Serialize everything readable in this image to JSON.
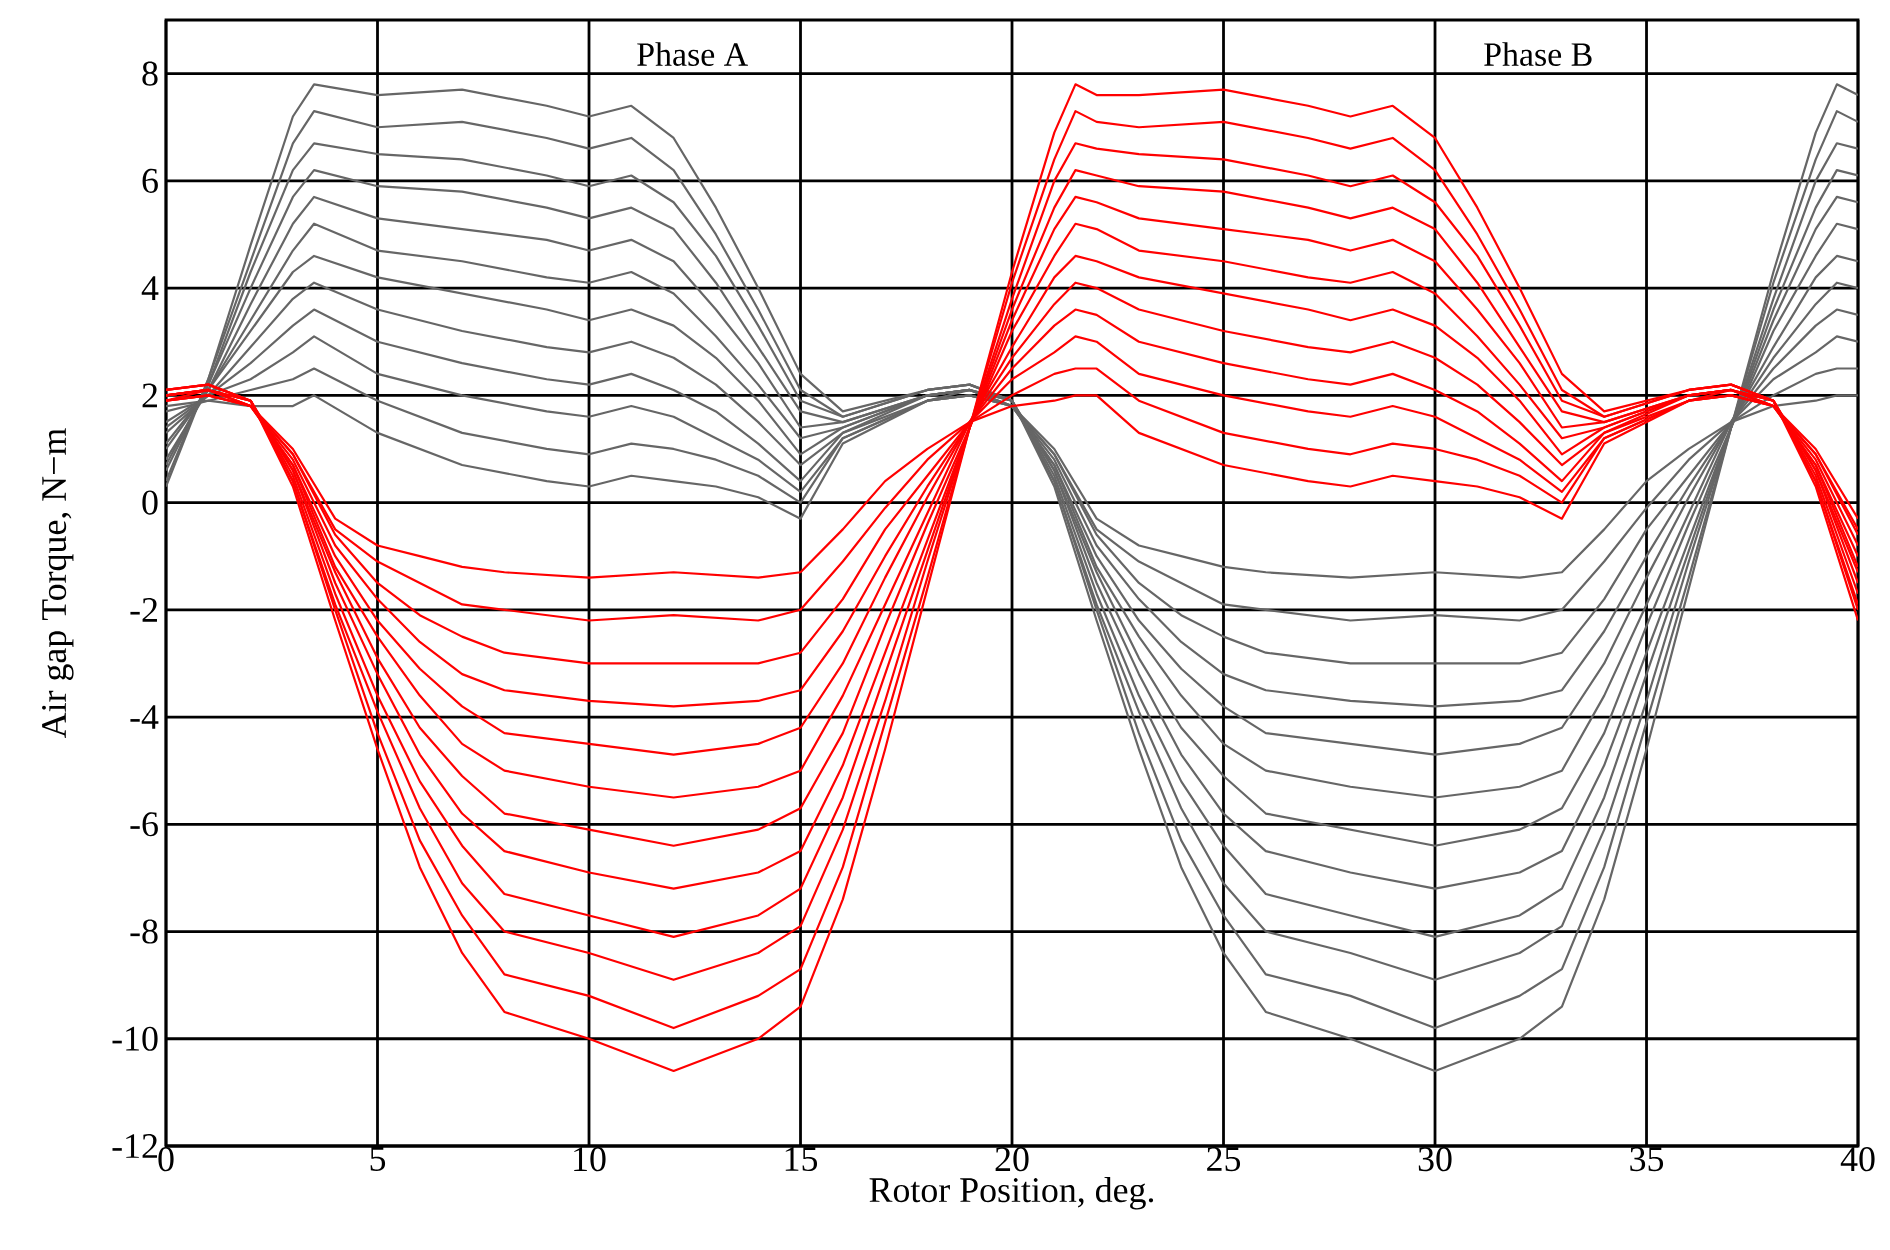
{
  "chart_data": {
    "type": "line",
    "xlabel": "Rotor Position, deg.",
    "ylabel": "Air gap Torque, N−m",
    "xlim": [
      0,
      40
    ],
    "ylim": [
      -12,
      9
    ],
    "xticks": [
      0,
      5,
      10,
      15,
      20,
      25,
      30,
      35,
      40
    ],
    "yticks": [
      -12,
      -10,
      -8,
      -6,
      -4,
      -2,
      0,
      2,
      4,
      6,
      8
    ],
    "grid": true,
    "line_style": "solid",
    "marker": "none",
    "annotations": [
      "Phase A",
      "Phase B"
    ],
    "series": [
      {
        "color": "#666666",
        "x": [
          0,
          1,
          2,
          3,
          3.5,
          5,
          7,
          9,
          10,
          11,
          12,
          13,
          14,
          15,
          16,
          18,
          19,
          20,
          21,
          22,
          23,
          24,
          25,
          26,
          28,
          30,
          32,
          33,
          34,
          35,
          36,
          37,
          38,
          39,
          39.5,
          40
        ],
        "values": [
          1.8,
          1.9,
          1.8,
          1.8,
          2.0,
          1.3,
          0.7,
          0.4,
          0.3,
          0.5,
          0.4,
          0.3,
          0.1,
          -0.3,
          1.1,
          1.9,
          2.0,
          1.8,
          1.0,
          -0.3,
          -0.8,
          -1.0,
          -1.2,
          -1.3,
          -1.4,
          -1.3,
          -1.4,
          -1.3,
          -0.5,
          0.4,
          1.0,
          1.5,
          1.8,
          1.9,
          2.0,
          2.0
        ]
      },
      {
        "color": "#666666",
        "x": [
          0,
          1,
          2,
          3,
          3.5,
          5,
          7,
          9,
          10,
          11,
          12,
          13,
          14,
          15,
          16,
          18,
          19,
          20,
          21,
          22,
          23,
          24,
          25,
          26,
          28,
          30,
          32,
          33,
          34,
          35,
          36,
          37,
          38,
          39,
          39.5,
          40
        ],
        "values": [
          1.7,
          1.9,
          2.1,
          2.3,
          2.5,
          1.9,
          1.3,
          1.0,
          0.9,
          1.1,
          1.0,
          0.8,
          0.5,
          0.0,
          1.2,
          1.9,
          2.0,
          1.8,
          0.9,
          -0.5,
          -1.1,
          -1.5,
          -1.9,
          -2.0,
          -2.2,
          -2.1,
          -2.2,
          -2.0,
          -1.1,
          -0.1,
          0.8,
          1.5,
          2.0,
          2.4,
          2.5,
          2.5
        ]
      },
      {
        "color": "#666666",
        "x": [
          0,
          1,
          2,
          3,
          3.5,
          5,
          7,
          9,
          10,
          11,
          12,
          13,
          14,
          15,
          16,
          18,
          19,
          20,
          21,
          22,
          23,
          24,
          25,
          26,
          28,
          30,
          32,
          33,
          34,
          35,
          36,
          37,
          38,
          39,
          39.5,
          40
        ],
        "values": [
          1.5,
          2.0,
          2.3,
          2.8,
          3.1,
          2.4,
          2.0,
          1.7,
          1.6,
          1.8,
          1.6,
          1.2,
          0.8,
          0.2,
          1.2,
          1.9,
          2.0,
          1.8,
          0.9,
          -0.6,
          -1.5,
          -2.1,
          -2.5,
          -2.8,
          -3.0,
          -3.0,
          -3.0,
          -2.8,
          -1.8,
          -0.5,
          0.5,
          1.5,
          2.3,
          2.8,
          3.1,
          3.0
        ]
      },
      {
        "color": "#666666",
        "x": [
          0,
          1,
          2,
          3,
          3.5,
          5,
          7,
          9,
          10,
          11,
          12,
          13,
          14,
          15,
          16,
          18,
          19,
          20,
          21,
          22,
          23,
          24,
          25,
          26,
          28,
          30,
          32,
          33,
          34,
          35,
          36,
          37,
          38,
          39,
          39.5,
          40
        ],
        "values": [
          1.4,
          2.0,
          2.6,
          3.3,
          3.6,
          3.0,
          2.6,
          2.3,
          2.2,
          2.4,
          2.1,
          1.7,
          1.1,
          0.4,
          1.3,
          1.9,
          2.1,
          1.8,
          0.8,
          -0.8,
          -1.8,
          -2.6,
          -3.2,
          -3.5,
          -3.7,
          -3.8,
          -3.7,
          -3.5,
          -2.4,
          -1.0,
          0.3,
          1.5,
          2.5,
          3.3,
          3.6,
          3.5
        ]
      },
      {
        "color": "#666666",
        "x": [
          0,
          1,
          2,
          3,
          3.5,
          5,
          7,
          9,
          10,
          11,
          12,
          13,
          14,
          15,
          16,
          18,
          19,
          20,
          21,
          22,
          23,
          24,
          25,
          26,
          28,
          30,
          32,
          33,
          34,
          35,
          36,
          37,
          38,
          39,
          39.5,
          40
        ],
        "values": [
          1.3,
          2.0,
          2.9,
          3.8,
          4.1,
          3.6,
          3.2,
          2.9,
          2.8,
          3.0,
          2.7,
          2.2,
          1.5,
          0.7,
          1.3,
          2.0,
          2.1,
          1.8,
          0.7,
          -1.0,
          -2.2,
          -3.1,
          -3.8,
          -4.3,
          -4.5,
          -4.7,
          -4.5,
          -4.2,
          -3.0,
          -1.4,
          0.1,
          1.5,
          2.7,
          3.7,
          4.1,
          4.0
        ]
      },
      {
        "color": "#666666",
        "x": [
          0,
          1,
          2,
          3,
          3.5,
          5,
          7,
          9,
          10,
          11,
          12,
          13,
          14,
          15,
          16,
          18,
          19,
          20,
          21,
          22,
          23,
          24,
          25,
          26,
          28,
          30,
          32,
          33,
          34,
          35,
          36,
          37,
          38,
          39,
          39.5,
          40
        ],
        "values": [
          1.1,
          2.1,
          3.2,
          4.3,
          4.6,
          4.2,
          3.9,
          3.6,
          3.4,
          3.6,
          3.3,
          2.7,
          1.9,
          0.9,
          1.4,
          2.0,
          2.1,
          1.8,
          0.7,
          -1.2,
          -2.5,
          -3.6,
          -4.5,
          -5.0,
          -5.3,
          -5.5,
          -5.3,
          -5.0,
          -3.6,
          -1.9,
          -0.2,
          1.5,
          2.9,
          4.2,
          4.6,
          4.5
        ]
      },
      {
        "color": "#666666",
        "x": [
          0,
          1,
          2,
          3,
          3.5,
          5,
          7,
          9,
          10,
          11,
          12,
          13,
          14,
          15,
          16,
          18,
          19,
          20,
          21,
          22,
          23,
          24,
          25,
          26,
          28,
          30,
          32,
          33,
          34,
          35,
          36,
          37,
          38,
          39,
          39.5,
          40
        ],
        "values": [
          1.0,
          2.1,
          3.4,
          4.7,
          5.2,
          4.7,
          4.5,
          4.2,
          4.1,
          4.3,
          3.9,
          3.1,
          2.2,
          1.2,
          1.4,
          2.0,
          2.1,
          1.9,
          0.6,
          -1.3,
          -2.9,
          -4.2,
          -5.1,
          -5.8,
          -6.1,
          -6.4,
          -6.1,
          -5.7,
          -4.3,
          -2.3,
          -0.4,
          1.4,
          3.2,
          4.6,
          5.2,
          5.1
        ]
      },
      {
        "color": "#666666",
        "x": [
          0,
          1,
          2,
          3,
          3.5,
          5,
          7,
          9,
          10,
          11,
          12,
          13,
          14,
          15,
          16,
          18,
          19,
          20,
          21,
          22,
          23,
          24,
          25,
          26,
          28,
          30,
          32,
          33,
          34,
          35,
          36,
          37,
          38,
          39,
          39.5,
          40
        ],
        "values": [
          0.8,
          2.1,
          3.7,
          5.2,
          5.7,
          5.3,
          5.1,
          4.9,
          4.7,
          4.9,
          4.5,
          3.6,
          2.6,
          1.4,
          1.5,
          2.0,
          2.1,
          1.9,
          0.6,
          -1.5,
          -3.2,
          -4.7,
          -5.8,
          -6.5,
          -6.9,
          -7.2,
          -6.9,
          -6.5,
          -4.9,
          -2.8,
          -0.7,
          1.4,
          3.4,
          5.1,
          5.7,
          5.6
        ]
      },
      {
        "color": "#666666",
        "x": [
          0,
          1,
          2,
          3,
          3.5,
          5,
          7,
          9,
          10,
          11,
          12,
          13,
          14,
          15,
          16,
          18,
          19,
          20,
          21,
          22,
          23,
          24,
          25,
          26,
          28,
          30,
          32,
          33,
          34,
          35,
          36,
          37,
          38,
          39,
          39.5,
          40
        ],
        "values": [
          0.7,
          2.2,
          4.0,
          5.7,
          6.2,
          5.9,
          5.8,
          5.5,
          5.3,
          5.5,
          5.1,
          4.1,
          2.9,
          1.7,
          1.5,
          2.0,
          2.1,
          1.9,
          0.5,
          -1.7,
          -3.6,
          -5.2,
          -6.4,
          -7.3,
          -7.7,
          -8.1,
          -7.7,
          -7.2,
          -5.5,
          -3.2,
          -0.9,
          1.4,
          3.6,
          5.5,
          6.2,
          6.1
        ]
      },
      {
        "color": "#666666",
        "x": [
          0,
          1,
          2,
          3,
          3.5,
          5,
          7,
          9,
          10,
          11,
          12,
          13,
          14,
          15,
          16,
          18,
          19,
          20,
          21,
          22,
          23,
          24,
          25,
          26,
          28,
          30,
          32,
          33,
          34,
          35,
          36,
          37,
          38,
          39,
          39.5,
          40
        ],
        "values": [
          0.6,
          2.2,
          4.3,
          6.2,
          6.7,
          6.5,
          6.4,
          6.1,
          5.9,
          6.1,
          5.6,
          4.6,
          3.3,
          1.9,
          1.6,
          2.1,
          2.2,
          1.9,
          0.4,
          -1.9,
          -3.9,
          -5.7,
          -7.1,
          -8.0,
          -8.4,
          -8.9,
          -8.4,
          -7.9,
          -6.1,
          -3.7,
          -1.1,
          1.4,
          3.8,
          6.0,
          6.7,
          6.6
        ]
      },
      {
        "color": "#666666",
        "x": [
          0,
          1,
          2,
          3,
          3.5,
          5,
          7,
          9,
          10,
          11,
          12,
          13,
          14,
          15,
          16,
          18,
          19,
          20,
          21,
          22,
          23,
          24,
          25,
          26,
          28,
          30,
          32,
          33,
          34,
          35,
          36,
          37,
          38,
          39,
          39.5,
          40
        ],
        "values": [
          0.4,
          2.3,
          4.5,
          6.7,
          7.3,
          7.0,
          7.1,
          6.8,
          6.6,
          6.8,
          6.2,
          5.0,
          3.6,
          2.1,
          1.6,
          2.1,
          2.2,
          1.9,
          0.4,
          -2.0,
          -4.3,
          -6.3,
          -7.7,
          -8.8,
          -9.2,
          -9.8,
          -9.2,
          -8.7,
          -6.8,
          -4.1,
          -1.4,
          1.4,
          4.1,
          6.4,
          7.3,
          7.1
        ]
      },
      {
        "color": "#666666",
        "x": [
          0,
          1,
          2,
          3,
          3.5,
          5,
          7,
          9,
          10,
          11,
          12,
          13,
          14,
          15,
          16,
          18,
          19,
          20,
          21,
          22,
          23,
          24,
          25,
          26,
          28,
          30,
          32,
          33,
          34,
          35,
          36,
          37,
          38,
          39,
          39.5,
          40
        ],
        "values": [
          0.3,
          2.3,
          4.8,
          7.2,
          7.8,
          7.6,
          7.7,
          7.4,
          7.2,
          7.4,
          6.8,
          5.5,
          4.0,
          2.4,
          1.7,
          2.1,
          2.2,
          1.9,
          0.3,
          -2.2,
          -4.6,
          -6.8,
          -8.4,
          -9.5,
          -10.0,
          -10.6,
          -10.0,
          -9.4,
          -7.4,
          -4.6,
          -1.6,
          1.4,
          4.3,
          6.9,
          7.8,
          7.6
        ]
      },
      {
        "color": "#ff0000",
        "x": [
          0,
          1,
          2,
          3,
          4,
          5,
          6,
          7,
          8,
          10,
          12,
          14,
          15,
          16,
          17,
          18,
          19,
          20,
          21,
          21.5,
          22,
          23,
          25,
          27,
          28,
          29,
          30,
          31,
          32,
          33,
          34,
          36,
          37,
          38,
          39,
          40
        ],
        "values": [
          1.9,
          2.0,
          1.8,
          1.0,
          -0.3,
          -0.8,
          -1.0,
          -1.2,
          -1.3,
          -1.4,
          -1.3,
          -1.4,
          -1.3,
          -0.5,
          0.4,
          1.0,
          1.5,
          1.8,
          1.9,
          2.0,
          2.0,
          1.3,
          0.7,
          0.4,
          0.3,
          0.5,
          0.4,
          0.3,
          0.1,
          -0.3,
          1.1,
          1.9,
          2.0,
          1.8,
          1.0,
          -0.3
        ]
      },
      {
        "color": "#ff0000",
        "x": [
          0,
          1,
          2,
          3,
          4,
          5,
          6,
          7,
          8,
          10,
          12,
          14,
          15,
          16,
          17,
          18,
          19,
          20,
          21,
          21.5,
          22,
          23,
          25,
          27,
          28,
          29,
          30,
          31,
          32,
          33,
          34,
          36,
          37,
          38,
          39,
          40
        ],
        "values": [
          1.9,
          2.0,
          1.8,
          0.9,
          -0.5,
          -1.1,
          -1.5,
          -1.9,
          -2.0,
          -2.2,
          -2.1,
          -2.2,
          -2.0,
          -1.1,
          -0.1,
          0.8,
          1.5,
          2.0,
          2.4,
          2.5,
          2.5,
          1.9,
          1.3,
          1.0,
          0.9,
          1.1,
          1.0,
          0.8,
          0.5,
          0.0,
          1.2,
          1.9,
          2.0,
          1.8,
          0.9,
          -0.5
        ]
      },
      {
        "color": "#ff0000",
        "x": [
          0,
          1,
          2,
          3,
          4,
          5,
          6,
          7,
          8,
          10,
          12,
          14,
          15,
          16,
          17,
          18,
          19,
          20,
          21,
          21.5,
          22,
          23,
          25,
          27,
          28,
          29,
          30,
          31,
          32,
          33,
          34,
          36,
          37,
          38,
          39,
          40
        ],
        "values": [
          1.9,
          2.0,
          1.8,
          0.9,
          -0.6,
          -1.5,
          -2.1,
          -2.5,
          -2.8,
          -3.0,
          -3.0,
          -3.0,
          -2.8,
          -1.8,
          -0.5,
          0.5,
          1.5,
          2.3,
          2.8,
          3.1,
          3.0,
          2.4,
          2.0,
          1.7,
          1.6,
          1.8,
          1.6,
          1.2,
          0.8,
          0.2,
          1.2,
          1.9,
          2.0,
          1.8,
          0.9,
          -0.6
        ]
      },
      {
        "color": "#ff0000",
        "x": [
          0,
          1,
          2,
          3,
          4,
          5,
          6,
          7,
          8,
          10,
          12,
          14,
          15,
          16,
          17,
          18,
          19,
          20,
          21,
          21.5,
          22,
          23,
          25,
          27,
          28,
          29,
          30,
          31,
          32,
          33,
          34,
          36,
          37,
          38,
          39,
          40
        ],
        "values": [
          1.9,
          2.1,
          1.8,
          0.8,
          -0.8,
          -1.8,
          -2.6,
          -3.2,
          -3.5,
          -3.7,
          -3.8,
          -3.7,
          -3.5,
          -2.4,
          -1.0,
          0.3,
          1.5,
          2.5,
          3.3,
          3.6,
          3.5,
          3.0,
          2.6,
          2.3,
          2.2,
          2.4,
          2.1,
          1.7,
          1.1,
          0.4,
          1.3,
          1.9,
          2.1,
          1.8,
          0.8,
          -0.8
        ]
      },
      {
        "color": "#ff0000",
        "x": [
          0,
          1,
          2,
          3,
          4,
          5,
          6,
          7,
          8,
          10,
          12,
          14,
          15,
          16,
          17,
          18,
          19,
          20,
          21,
          21.5,
          22,
          23,
          25,
          27,
          28,
          29,
          30,
          31,
          32,
          33,
          34,
          36,
          37,
          38,
          39,
          40
        ],
        "values": [
          2.0,
          2.1,
          1.8,
          0.7,
          -1.0,
          -2.2,
          -3.1,
          -3.8,
          -4.3,
          -4.5,
          -4.7,
          -4.5,
          -4.2,
          -3.0,
          -1.4,
          0.1,
          1.5,
          2.7,
          3.7,
          4.1,
          4.0,
          3.6,
          3.2,
          2.9,
          2.8,
          3.0,
          2.7,
          2.2,
          1.5,
          0.7,
          1.3,
          2.0,
          2.1,
          1.8,
          0.7,
          -1.0
        ]
      },
      {
        "color": "#ff0000",
        "x": [
          0,
          1,
          2,
          3,
          4,
          5,
          6,
          7,
          8,
          10,
          12,
          14,
          15,
          16,
          17,
          18,
          19,
          20,
          21,
          21.5,
          22,
          23,
          25,
          27,
          28,
          29,
          30,
          31,
          32,
          33,
          34,
          36,
          37,
          38,
          39,
          40
        ],
        "values": [
          2.0,
          2.1,
          1.8,
          0.7,
          -1.2,
          -2.5,
          -3.6,
          -4.5,
          -5.0,
          -5.3,
          -5.5,
          -5.3,
          -5.0,
          -3.6,
          -1.9,
          -0.2,
          1.5,
          2.9,
          4.2,
          4.6,
          4.5,
          4.2,
          3.9,
          3.6,
          3.4,
          3.6,
          3.3,
          2.7,
          1.9,
          0.9,
          1.4,
          2.0,
          2.1,
          1.8,
          0.7,
          -1.2
        ]
      },
      {
        "color": "#ff0000",
        "x": [
          0,
          1,
          2,
          3,
          4,
          5,
          6,
          7,
          8,
          10,
          12,
          14,
          15,
          16,
          17,
          18,
          19,
          20,
          21,
          21.5,
          22,
          23,
          25,
          27,
          28,
          29,
          30,
          31,
          32,
          33,
          34,
          36,
          37,
          38,
          39,
          40
        ],
        "values": [
          2.0,
          2.1,
          1.9,
          0.6,
          -1.3,
          -2.9,
          -4.2,
          -5.1,
          -5.8,
          -6.1,
          -6.4,
          -6.1,
          -5.7,
          -4.3,
          -2.3,
          -0.4,
          1.4,
          3.2,
          4.6,
          5.2,
          5.1,
          4.7,
          4.5,
          4.2,
          4.1,
          4.3,
          3.9,
          3.1,
          2.2,
          1.2,
          1.4,
          2.0,
          2.1,
          1.9,
          0.6,
          -1.3
        ]
      },
      {
        "color": "#ff0000",
        "x": [
          0,
          1,
          2,
          3,
          4,
          5,
          6,
          7,
          8,
          10,
          12,
          14,
          15,
          16,
          17,
          18,
          19,
          20,
          21,
          21.5,
          22,
          23,
          25,
          27,
          28,
          29,
          30,
          31,
          32,
          33,
          34,
          36,
          37,
          38,
          39,
          40
        ],
        "values": [
          2.0,
          2.1,
          1.9,
          0.6,
          -1.5,
          -3.2,
          -4.7,
          -5.8,
          -6.5,
          -6.9,
          -7.2,
          -6.9,
          -6.5,
          -4.9,
          -2.8,
          -0.7,
          1.4,
          3.4,
          5.1,
          5.7,
          5.6,
          5.3,
          5.1,
          4.9,
          4.7,
          4.9,
          4.5,
          3.6,
          2.6,
          1.4,
          1.5,
          2.0,
          2.1,
          1.9,
          0.6,
          -1.5
        ]
      },
      {
        "color": "#ff0000",
        "x": [
          0,
          1,
          2,
          3,
          4,
          5,
          6,
          7,
          8,
          10,
          12,
          14,
          15,
          16,
          17,
          18,
          19,
          20,
          21,
          21.5,
          22,
          23,
          25,
          27,
          28,
          29,
          30,
          31,
          32,
          33,
          34,
          36,
          37,
          38,
          39,
          40
        ],
        "values": [
          2.0,
          2.1,
          1.9,
          0.5,
          -1.7,
          -3.6,
          -5.2,
          -6.4,
          -7.3,
          -7.7,
          -8.1,
          -7.7,
          -7.2,
          -5.5,
          -3.2,
          -0.9,
          1.4,
          3.6,
          5.5,
          6.2,
          6.1,
          5.9,
          5.8,
          5.5,
          5.3,
          5.5,
          5.1,
          4.1,
          2.9,
          1.7,
          1.5,
          2.0,
          2.1,
          1.9,
          0.5,
          -1.7
        ]
      },
      {
        "color": "#ff0000",
        "x": [
          0,
          1,
          2,
          3,
          4,
          5,
          6,
          7,
          8,
          10,
          12,
          14,
          15,
          16,
          17,
          18,
          19,
          20,
          21,
          21.5,
          22,
          23,
          25,
          27,
          28,
          29,
          30,
          31,
          32,
          33,
          34,
          36,
          37,
          38,
          39,
          40
        ],
        "values": [
          2.1,
          2.2,
          1.9,
          0.4,
          -1.9,
          -3.9,
          -5.7,
          -7.1,
          -8.0,
          -8.4,
          -8.9,
          -8.4,
          -7.9,
          -6.1,
          -3.7,
          -1.1,
          1.4,
          3.8,
          6.0,
          6.7,
          6.6,
          6.5,
          6.4,
          6.1,
          5.9,
          6.1,
          5.6,
          4.6,
          3.3,
          1.9,
          1.6,
          2.1,
          2.2,
          1.9,
          0.4,
          -1.9
        ]
      },
      {
        "color": "#ff0000",
        "x": [
          0,
          1,
          2,
          3,
          4,
          5,
          6,
          7,
          8,
          10,
          12,
          14,
          15,
          16,
          17,
          18,
          19,
          20,
          21,
          21.5,
          22,
          23,
          25,
          27,
          28,
          29,
          30,
          31,
          32,
          33,
          34,
          36,
          37,
          38,
          39,
          40
        ],
        "values": [
          2.1,
          2.2,
          1.9,
          0.4,
          -2.0,
          -4.3,
          -6.3,
          -7.7,
          -8.8,
          -9.2,
          -9.8,
          -9.2,
          -8.7,
          -6.8,
          -4.1,
          -1.4,
          1.4,
          4.1,
          6.4,
          7.3,
          7.1,
          7.0,
          7.1,
          6.8,
          6.6,
          6.8,
          6.2,
          5.0,
          3.6,
          2.1,
          1.6,
          2.1,
          2.2,
          1.9,
          0.4,
          -2.0
        ]
      },
      {
        "color": "#ff0000",
        "x": [
          0,
          1,
          2,
          3,
          4,
          5,
          6,
          7,
          8,
          10,
          12,
          14,
          15,
          16,
          17,
          18,
          19,
          20,
          21,
          21.5,
          22,
          23,
          25,
          27,
          28,
          29,
          30,
          31,
          32,
          33,
          34,
          36,
          37,
          38,
          39,
          40
        ],
        "values": [
          2.1,
          2.2,
          1.9,
          0.3,
          -2.2,
          -4.6,
          -6.8,
          -8.4,
          -9.5,
          -10.0,
          -10.6,
          -10.0,
          -9.4,
          -7.4,
          -4.6,
          -1.6,
          1.4,
          4.3,
          6.9,
          7.8,
          7.6,
          7.6,
          7.7,
          7.4,
          7.2,
          7.4,
          6.8,
          5.5,
          4.0,
          2.4,
          1.7,
          2.1,
          2.2,
          1.9,
          0.3,
          -2.2
        ]
      }
    ]
  }
}
